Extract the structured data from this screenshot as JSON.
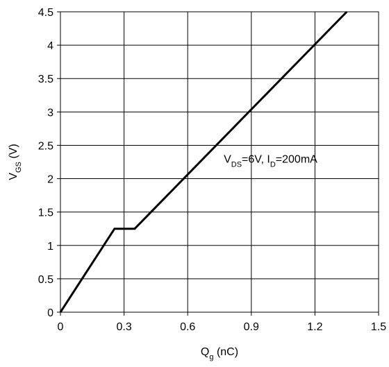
{
  "chart_data": {
    "type": "line",
    "title": "",
    "xlabel": {
      "main": "Q",
      "sub": "g",
      "rest": " (nC)"
    },
    "ylabel": {
      "main": "V",
      "sub": "GS",
      "rest": " (V)"
    },
    "xlim": [
      0,
      1.5
    ],
    "ylim": [
      0,
      4.5
    ],
    "x_ticks": [
      0,
      0.3,
      0.6,
      0.9,
      1.2,
      1.5
    ],
    "x_tick_labels": [
      "0",
      "0.3",
      "0.6",
      "0.9",
      "1.2",
      "1.5"
    ],
    "y_ticks": [
      0,
      0.5,
      1,
      1.5,
      2,
      2.5,
      3,
      3.5,
      4,
      4.5
    ],
    "y_tick_labels": [
      "0",
      "0.5",
      "1",
      "1.5",
      "2",
      "2.5",
      "3",
      "3.5",
      "4",
      "4.5"
    ],
    "grid": true,
    "series": [
      {
        "color": "#000000",
        "x": [
          0,
          0.255,
          0.35,
          1.35
        ],
        "y": [
          0,
          1.25,
          1.25,
          4.5
        ]
      }
    ],
    "annotation": {
      "parts": [
        {
          "text": "V",
          "sub": false
        },
        {
          "text": "DS",
          "sub": true
        },
        {
          "text": "=6V, I",
          "sub": false
        },
        {
          "text": "D",
          "sub": true
        },
        {
          "text": "=200mA",
          "sub": false
        }
      ],
      "x": 0.77,
      "y": 2.2
    }
  }
}
